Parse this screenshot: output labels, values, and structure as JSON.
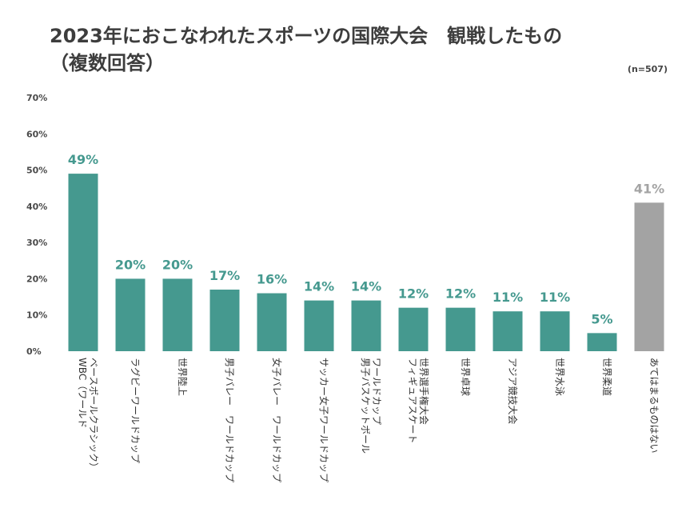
{
  "chart_data": {
    "type": "bar",
    "title": "2023年におこなわれたスポーツの国際大会　観戦したもの",
    "subtitle": "（複数回答）",
    "sample_size": "(n=507)",
    "ylim": [
      0,
      70
    ],
    "yticks": [
      "0%",
      "10%",
      "20%",
      "30%",
      "40%",
      "50%",
      "60%",
      "70%"
    ],
    "categories": [
      [
        "WBC（ワールド",
        "ベースボールクラシック）"
      ],
      [
        "ラグビーワールドカップ"
      ],
      [
        "世界陸上"
      ],
      [
        "男子バレー　ワールドカップ"
      ],
      [
        "女子バレー　ワールドカップ"
      ],
      [
        "サッカー女子ワールドカップ"
      ],
      [
        "男子バスケットボール",
        "ワールドカップ"
      ],
      [
        "フィギュアスケート",
        "世界選手権大会"
      ],
      [
        "世界卓球"
      ],
      [
        "アジア競技大会"
      ],
      [
        "世界水泳"
      ],
      [
        "世界柔道"
      ],
      [
        "あてはまるものはない"
      ]
    ],
    "values": [
      49,
      20,
      20,
      17,
      16,
      14,
      14,
      12,
      12,
      11,
      11,
      5,
      41
    ],
    "value_labels": [
      "49%",
      "20%",
      "20%",
      "17%",
      "16%",
      "14%",
      "14%",
      "12%",
      "12%",
      "11%",
      "11%",
      "5%",
      "41%"
    ],
    "colors": {
      "bar": "#45998f",
      "bar_none": "#a3a3a3",
      "label": "#45998f",
      "label_none": "#a3a3a3"
    }
  }
}
